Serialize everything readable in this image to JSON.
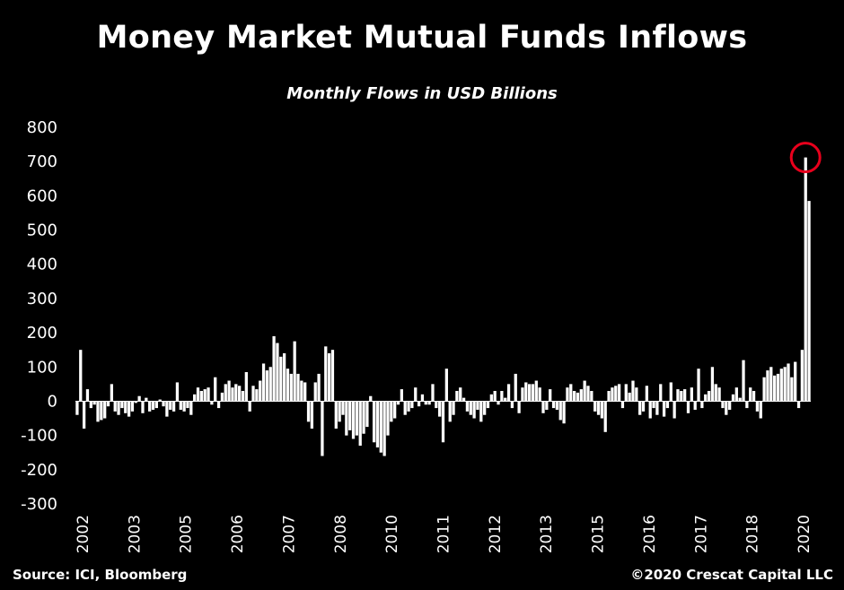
{
  "chart_data": {
    "type": "bar",
    "title": "Money Market Mutual Funds Inflows",
    "subtitle": "Monthly Flows in USD Billions",
    "ylim": [
      -300,
      800
    ],
    "yticks": [
      800,
      700,
      600,
      500,
      400,
      300,
      200,
      100,
      0,
      -100,
      -200,
      -300
    ],
    "ytick_labels": [
      "800",
      "700",
      "600",
      "500",
      "400",
      "300",
      "200",
      "100",
      "0",
      "-100",
      "-200",
      "-300"
    ],
    "xtick_labels": [
      "2002",
      "2003",
      "2005",
      "2006",
      "2007",
      "2008",
      "2010",
      "2011",
      "2012",
      "2013",
      "2015",
      "2016",
      "2017",
      "2018",
      "2020"
    ],
    "xrange": [
      "2002-01",
      "2020-04"
    ],
    "bar_color": "#ffffff",
    "grid": false,
    "annotation": {
      "type": "circle",
      "color": "#e8001c",
      "target_period": "2020-03",
      "target_value": 712
    },
    "series": [
      {
        "values": [
          -40,
          150,
          -80,
          35,
          -20,
          -10,
          -60,
          -55,
          -50,
          -15,
          50,
          -30,
          -40,
          -20,
          -35,
          -45,
          -30,
          -5,
          15,
          -35,
          10,
          -30,
          -25,
          -20,
          5,
          -15,
          -45,
          -25,
          -30,
          55,
          -25,
          -30,
          -20,
          -40,
          20,
          40,
          30,
          35,
          40,
          -10,
          70,
          -20,
          25,
          50,
          60,
          40,
          50,
          45,
          30,
          85,
          -30,
          45,
          35,
          60,
          110,
          90,
          100,
          190,
          170,
          130,
          140,
          95,
          80,
          175,
          80,
          60,
          55,
          -60,
          -80,
          55,
          80,
          -160,
          160,
          140,
          150,
          -80,
          -60,
          -40,
          -100,
          -85,
          -110,
          -100,
          -130,
          -95,
          -75,
          15,
          -120,
          -135,
          -150,
          -160,
          -100,
          -60,
          -50,
          -10,
          35,
          -40,
          -30,
          -20,
          40,
          -15,
          20,
          -10,
          -10,
          50,
          -20,
          -45,
          -120,
          95,
          -60,
          -40,
          30,
          40,
          10,
          -30,
          -40,
          -50,
          -25,
          -60,
          -40,
          -20,
          20,
          30,
          -10,
          30,
          10,
          50,
          -20,
          80,
          -35,
          40,
          55,
          50,
          50,
          60,
          40,
          -35,
          -25,
          35,
          -20,
          -25,
          -55,
          -65,
          40,
          50,
          30,
          25,
          35,
          60,
          45,
          30,
          -30,
          -40,
          -50,
          -90,
          30,
          40,
          45,
          50,
          -20,
          50,
          25,
          60,
          40,
          -40,
          -30,
          45,
          -50,
          -20,
          -40,
          50,
          -45,
          -20,
          55,
          -50,
          35,
          30,
          35,
          -35,
          40,
          -25,
          95,
          -20,
          20,
          30,
          100,
          50,
          40,
          -20,
          -40,
          -25,
          20,
          40,
          10,
          120,
          -20,
          40,
          30,
          -30,
          -50,
          70,
          90,
          100,
          75,
          80,
          95,
          100,
          110,
          70,
          115,
          -20,
          150,
          712,
          585
        ]
      }
    ]
  },
  "source": "Source: ICI, Bloomberg",
  "copyright": "©2020 Crescat Capital LLC"
}
